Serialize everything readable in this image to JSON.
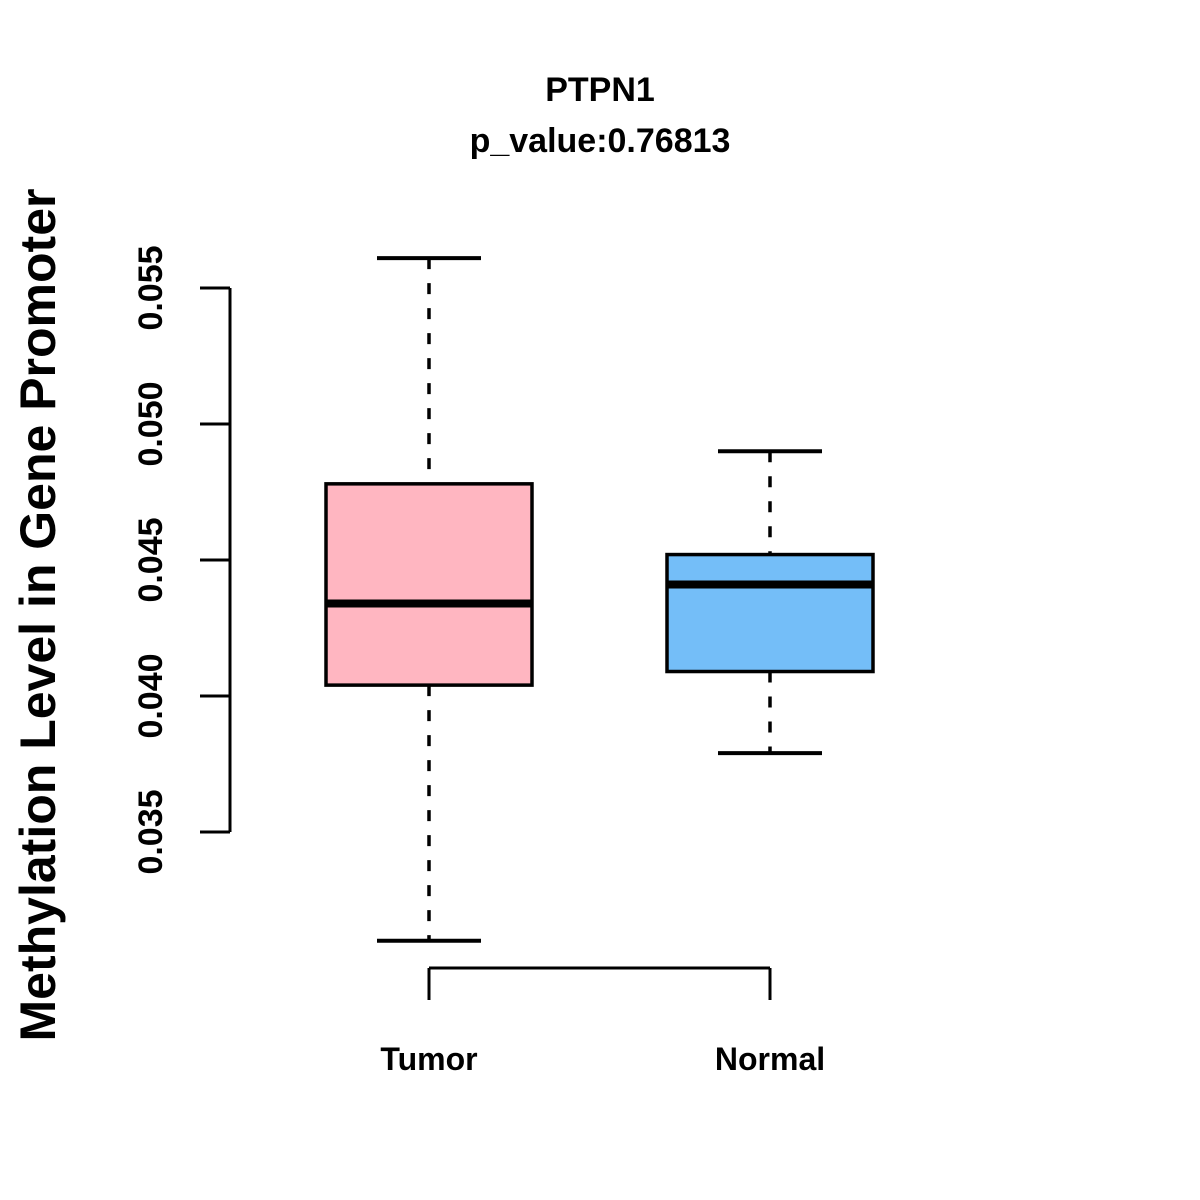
{
  "figure": {
    "title": "PTPN1",
    "subtitle": "p_value:0.76813",
    "ylabel": "Methylation Level in Gene Promoter"
  },
  "chart_data": {
    "type": "boxplot",
    "title": "PTPN1",
    "subtitle": "p_value:0.76813",
    "xlabel": "",
    "ylabel": "Methylation Level in Gene Promoter",
    "categories": [
      "Tumor",
      "Normal"
    ],
    "ylim": [
      0.035,
      0.055
    ],
    "yticks": [
      0.035,
      0.04,
      0.045,
      0.05,
      0.055
    ],
    "ytick_labels": [
      "0.035",
      "0.040",
      "0.045",
      "0.050",
      "0.055"
    ],
    "grid": false,
    "legend": "none",
    "series": [
      {
        "name": "Tumor",
        "color": "#FFB6C1",
        "lower_whisker": 0.031,
        "q1": 0.0404,
        "median": 0.0434,
        "q3": 0.0478,
        "upper_whisker": 0.0561
      },
      {
        "name": "Normal",
        "color": "#74BEF8",
        "lower_whisker": 0.0379,
        "q1": 0.0409,
        "median": 0.0441,
        "q3": 0.0452,
        "upper_whisker": 0.049
      }
    ],
    "colors": {
      "box_border": "#000000",
      "median_line": "#000000",
      "axis": "#000000"
    }
  }
}
